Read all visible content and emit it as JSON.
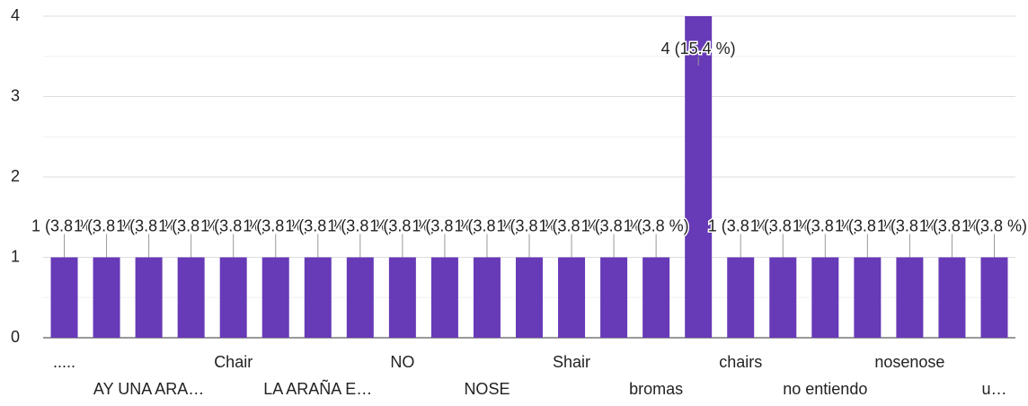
{
  "chart_data": {
    "type": "bar",
    "categories": [
      ".....",
      null,
      "AY UNA ARA…",
      null,
      "Chair",
      null,
      "LA ARAÑA E…",
      null,
      "NO",
      null,
      "NOSE",
      null,
      "Shair",
      null,
      "bromas",
      null,
      "chairs",
      null,
      "no entiendo",
      null,
      "nosenose",
      null,
      "u…"
    ],
    "values": [
      1,
      1,
      1,
      1,
      1,
      1,
      1,
      1,
      1,
      1,
      1,
      1,
      1,
      1,
      1,
      4,
      1,
      1,
      1,
      1,
      1,
      1,
      1
    ],
    "value_labels": [
      "1 (3.8 %)",
      "1 (3.8 %)",
      "1 (3.8 %)",
      "1 (3.8 %)",
      "1 (3.8 %)",
      "1 (3.8 %)",
      "1 (3.8 %)",
      "1 (3.8 %)",
      "1 (3.8 %)",
      "1 (3.8 %)",
      "1 (3.8 %)",
      "1 (3.8 %)",
      "1 (3.8 %)",
      "1 (3.8 %)",
      "1 (3.8 %)",
      "4 (15.4 %)",
      "1 (3.8 %)",
      "1 (3.8 %)",
      "1 (3.8 %)",
      "1 (3.8 %)",
      "1 (3.8 %)",
      "1 (3.8 %)",
      "1 (3.8 %)"
    ],
    "color": "#673ab7",
    "ylim": [
      0,
      4
    ],
    "yticks": [
      0,
      1,
      2,
      3,
      4
    ],
    "minor_yticks": [
      0.5,
      1.5,
      2.5,
      3.5
    ],
    "grid": true
  }
}
